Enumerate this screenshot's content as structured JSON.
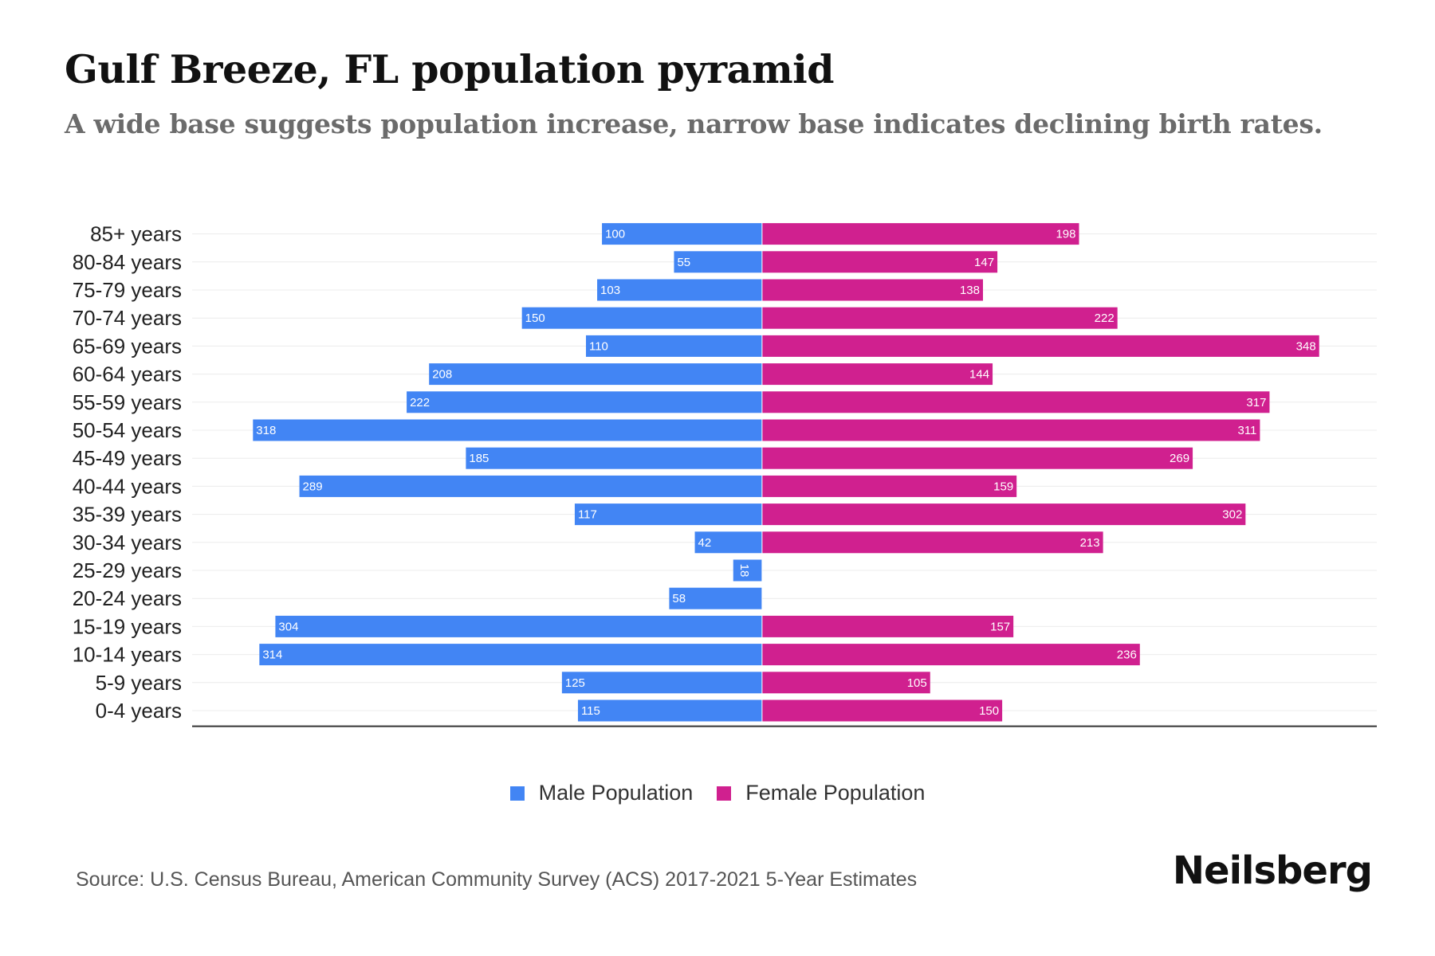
{
  "title": "Gulf Breeze, FL population pyramid",
  "subtitle": "A wide base suggests population increase, narrow base indicates declining birth rates.",
  "source": "Source: U.S. Census Bureau, American Community Survey (ACS) 2017-2021 5-Year Estimates",
  "brand": "Neilsberg",
  "colors": {
    "male": "#4285f4",
    "female": "#d0208f"
  },
  "legend": {
    "male": "Male Population",
    "female": "Female Population"
  },
  "chart_data": {
    "type": "bar",
    "orientation": "horizontal-diverging",
    "title": "Gulf Breeze, FL population pyramid",
    "categories": [
      "85+ years",
      "80-84 years",
      "75-79 years",
      "70-74 years",
      "65-69 years",
      "60-64 years",
      "55-59 years",
      "50-54 years",
      "45-49 years",
      "40-44 years",
      "35-39 years",
      "30-34 years",
      "25-29 years",
      "20-24 years",
      "15-19 years",
      "10-14 years",
      "5-9 years",
      "0-4 years"
    ],
    "series": [
      {
        "name": "Male Population",
        "values": [
          100,
          55,
          103,
          150,
          110,
          208,
          222,
          318,
          185,
          289,
          117,
          42,
          18,
          58,
          304,
          314,
          125,
          115
        ]
      },
      {
        "name": "Female Population",
        "values": [
          198,
          147,
          138,
          222,
          348,
          144,
          317,
          311,
          269,
          159,
          302,
          213,
          0,
          0,
          157,
          236,
          105,
          150
        ]
      }
    ],
    "xlim": [
      -356,
      384
    ],
    "grid": true,
    "legend_position": "bottom-center"
  }
}
